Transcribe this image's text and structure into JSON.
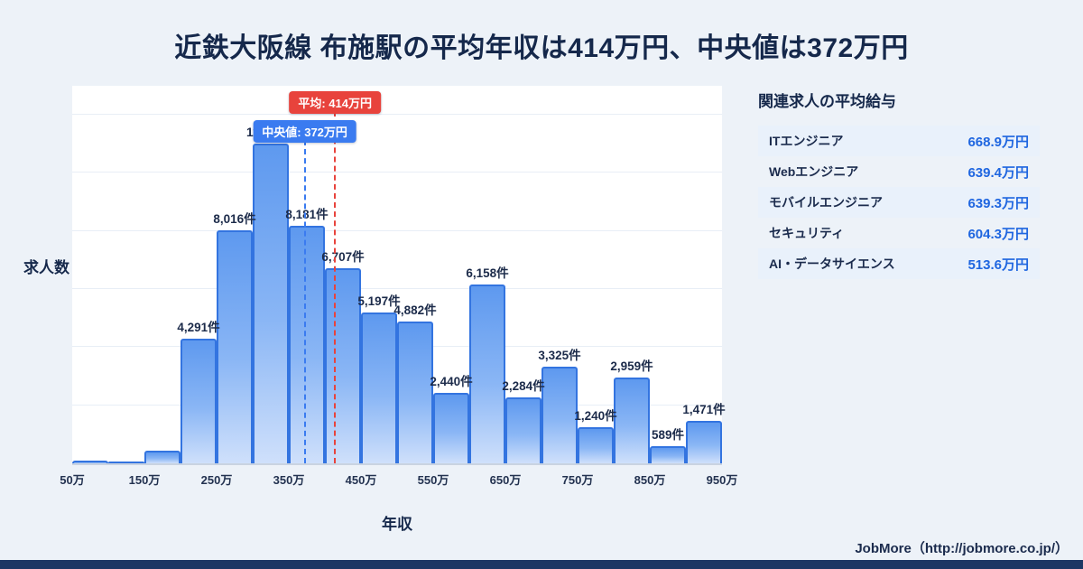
{
  "title": "近鉄大阪線 布施駅の平均年収は414万円、中央値は372万円",
  "chart_data": {
    "type": "bar",
    "title": "近鉄大阪線 布施駅の平均年収は414万円、中央値は372万円",
    "xlabel": "年収",
    "ylabel": "求人数",
    "x_range": [
      50,
      950
    ],
    "bin_width_man": 50,
    "bins_start_man": [
      50,
      100,
      150,
      200,
      250,
      300,
      350,
      400,
      450,
      500,
      550,
      600,
      650,
      700,
      750,
      800,
      850,
      900
    ],
    "values": [
      80,
      30,
      450,
      4291,
      8016,
      11000,
      8181,
      6707,
      5197,
      4882,
      2440,
      6158,
      2284,
      3325,
      1240,
      2959,
      589,
      1471
    ],
    "bar_labels": [
      "",
      "",
      "",
      "4,291件",
      "8,016件",
      "11,000件",
      "8,181件",
      "6,707件",
      "5,197件",
      "4,882件",
      "2,440件",
      "6,158件",
      "2,284件",
      "3,325件",
      "1,240件",
      "2,959件",
      "589件",
      "1,471件"
    ],
    "x_tick_labels": [
      "50万",
      "150万",
      "250万",
      "350万",
      "450万",
      "550万",
      "650万",
      "750万",
      "850万",
      "950万"
    ],
    "ylim": [
      0,
      13000
    ],
    "grid_step": 2000,
    "grid": true,
    "average": {
      "value": 414,
      "label": "平均: 414万円"
    },
    "median": {
      "value": 372,
      "label": "中央値: 372万円"
    }
  },
  "side_panel": {
    "title": "関連求人の平均給与",
    "rows": [
      {
        "label": "ITエンジニア",
        "value": "668.9万円"
      },
      {
        "label": "Webエンジニア",
        "value": "639.4万円"
      },
      {
        "label": "モバイルエンジニア",
        "value": "639.3万円"
      },
      {
        "label": "セキュリティ",
        "value": "604.3万円"
      },
      {
        "label": "AI・データサイエンス",
        "value": "513.6万円"
      }
    ]
  },
  "footer": {
    "text": "JobMore（http://jobmore.co.jp/）"
  },
  "colors": {
    "page_bg": "#edf2f8",
    "navy": "#15284b",
    "average": "#e8433c",
    "median": "#3a7bf0",
    "bar_fill_top": "#5e99ef",
    "bar_fill_bottom": "#cfe0fb",
    "bar_border": "#3374e0",
    "value_text": "#1f66e0",
    "row_alt_bg": "#e9f1fb",
    "bottom_bar": "#1c3764"
  }
}
